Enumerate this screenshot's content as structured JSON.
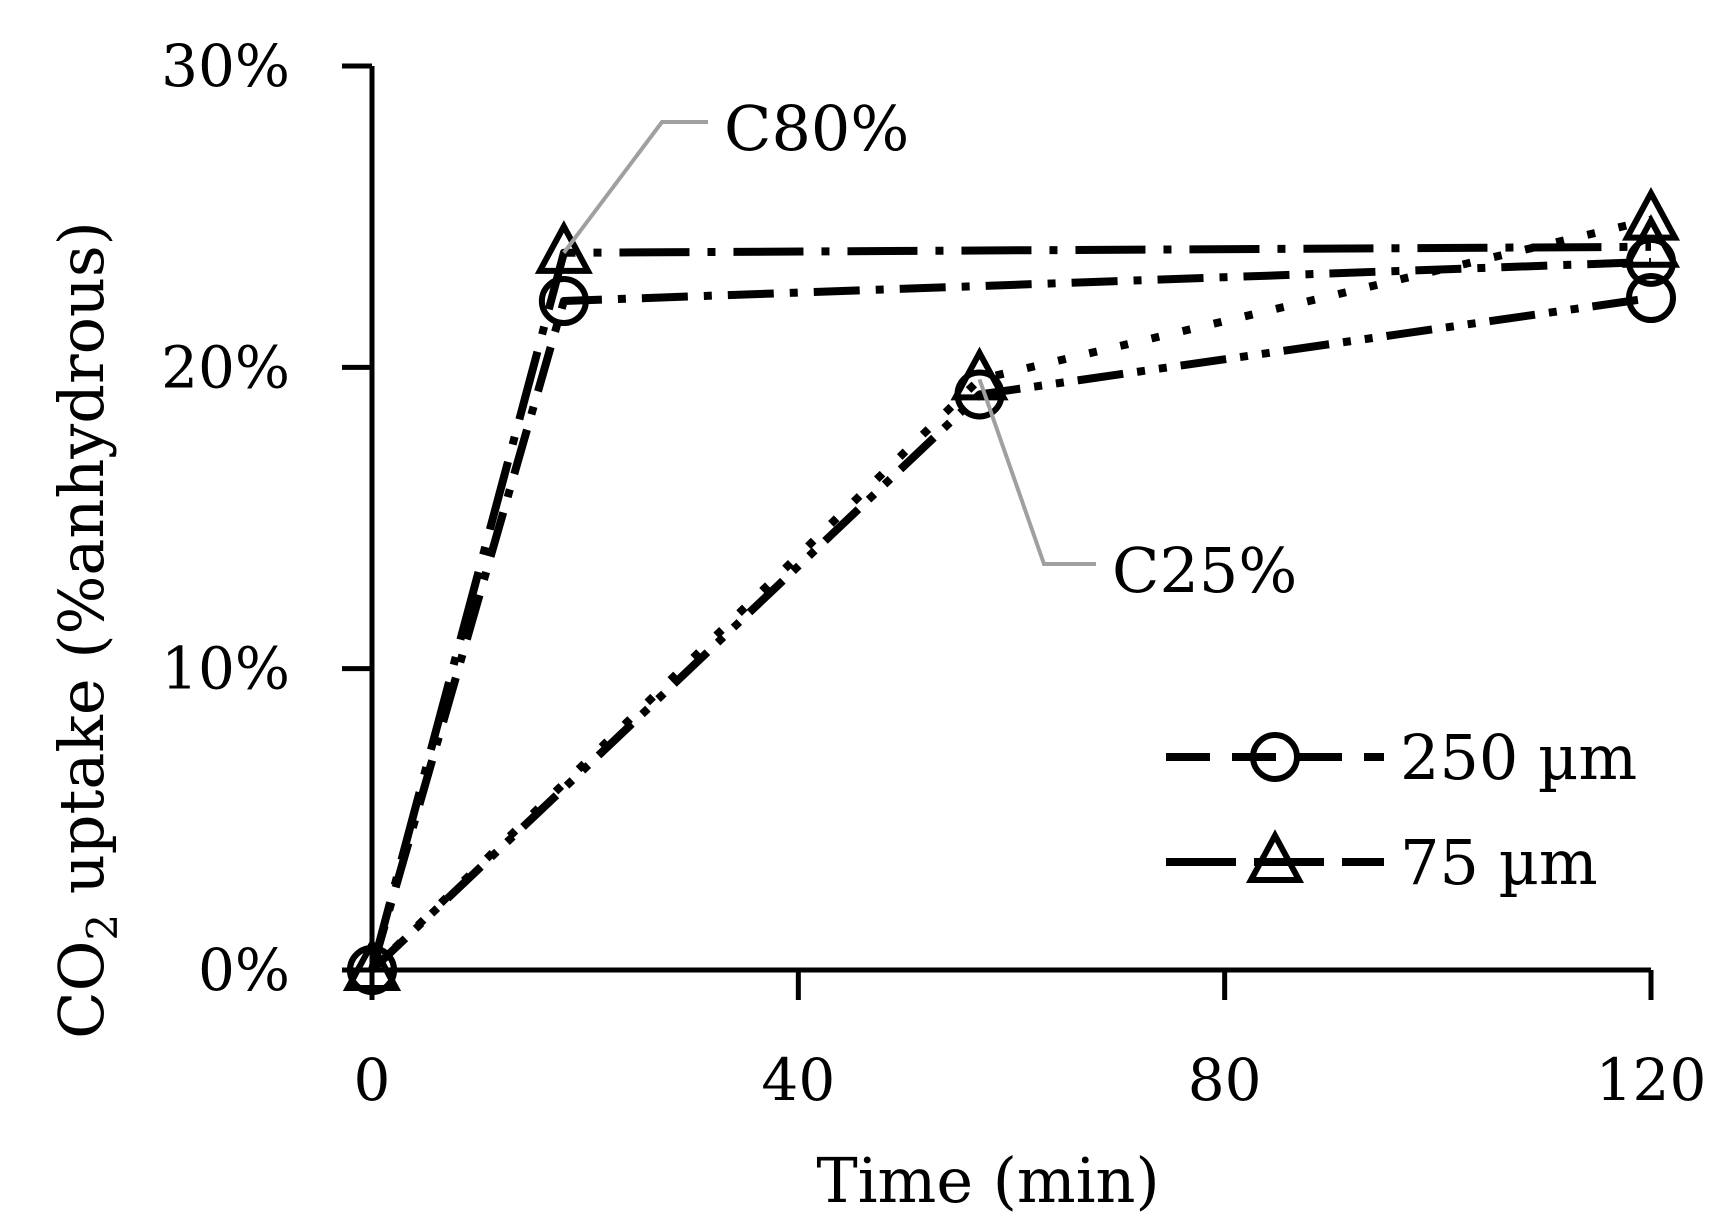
{
  "chart_data": {
    "type": "line",
    "title": "",
    "xlabel": "Time (min)",
    "ylabel_main": "CO",
    "ylabel_sub": "2",
    "ylabel_rest": " uptake (%anhydrous)",
    "xlim": [
      0,
      120
    ],
    "ylim": [
      0,
      0.3
    ],
    "x_ticks": [
      {
        "value": 0,
        "label": "0"
      },
      {
        "value": 40,
        "label": "40"
      },
      {
        "value": 80,
        "label": "80"
      },
      {
        "value": 120,
        "label": "120"
      }
    ],
    "y_ticks": [
      {
        "value": 0.0,
        "label": "0%"
      },
      {
        "value": 0.1,
        "label": "10%"
      },
      {
        "value": 0.2,
        "label": "20%"
      },
      {
        "value": 0.3,
        "label": "30%"
      }
    ],
    "series": [
      {
        "name": "250 µm",
        "group": "C80%",
        "marker": "circle",
        "dash": "dashdot",
        "x": [
          0,
          18,
          120
        ],
        "y": [
          0.0,
          0.222,
          0.235
        ]
      },
      {
        "name": "75 µm",
        "group": "C80%",
        "marker": "triangle",
        "dash": "longdashdot",
        "x": [
          0,
          18,
          120
        ],
        "y": [
          0.0,
          0.238,
          0.24
        ]
      },
      {
        "name": "250 µm",
        "group": "C25%",
        "marker": "circle",
        "dash": "dashdotdot",
        "x": [
          0,
          57,
          120
        ],
        "y": [
          0.0,
          0.191,
          0.223
        ]
      },
      {
        "name": "75 µm",
        "group": "C25%",
        "marker": "triangle",
        "dash": "dot",
        "x": [
          0,
          57,
          120
        ],
        "y": [
          0.0,
          0.196,
          0.249
        ]
      }
    ],
    "annotations": [
      {
        "text": "C80%",
        "target_x": 18,
        "target_y": 0.238,
        "color": "#a0a0a0"
      },
      {
        "text": "C25%",
        "target_x": 57,
        "target_y": 0.196,
        "color": "#a0a0a0"
      }
    ],
    "legend": {
      "position": "lower-right",
      "entries": [
        {
          "label": "250 µm",
          "marker": "circle"
        },
        {
          "label": "75 µm",
          "marker": "triangle"
        }
      ]
    },
    "colors": {
      "line": "#000000",
      "leader": "#a0a0a0"
    }
  }
}
